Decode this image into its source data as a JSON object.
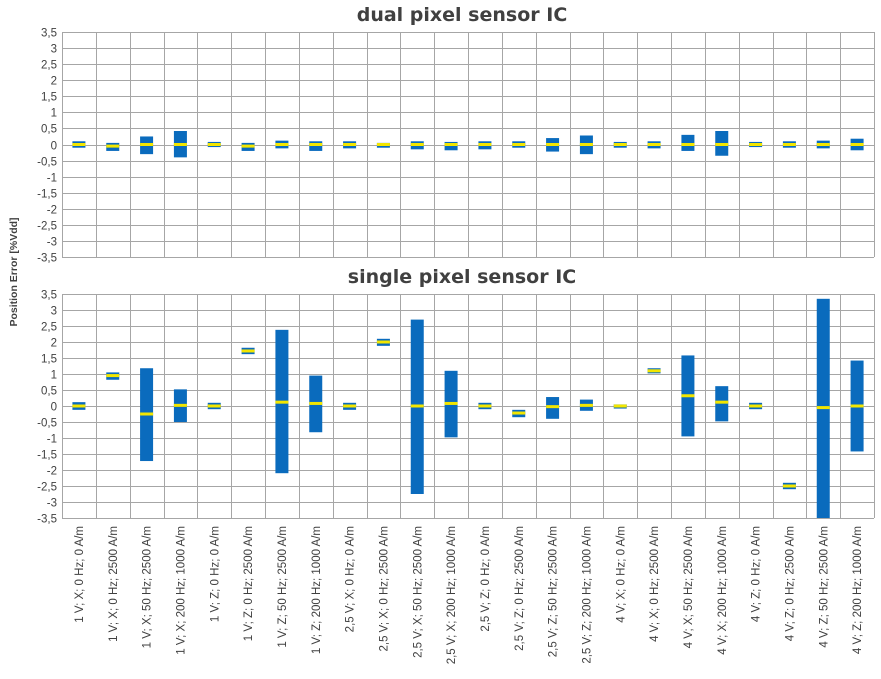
{
  "chart_data": {
    "type": "bar",
    "ylabel": "Position Error [%Vdd]",
    "ylim": [
      -3.5,
      3.5
    ],
    "yticks": [
      "3,5",
      "3",
      "2,5",
      "2",
      "1,5",
      "1",
      "0,5",
      "0",
      "-0,5",
      "-1",
      "-1,5",
      "-2",
      "-2,5",
      "-3",
      "-3,5"
    ],
    "grid": true,
    "categories": [
      "1 V; X; 0 Hz; 0 A/m",
      "1 V; X; 0 Hz; 2500 A/m",
      "1 V; X; 50 Hz; 2500 A/m",
      "1 V; X; 200 Hz; 1000 A/m",
      "1 V; Z; 0 Hz; 0 A/m",
      "1 V; Z; 0 Hz; 2500 A/m",
      "1 V; Z; 50 Hz; 2500 A/m",
      "1 V; Z; 200 Hz; 1000 A/m",
      "2,5 V; X; 0 Hz; 0 A/m",
      "2,5 V; X; 0 Hz; 2500 A/m",
      "2,5 V; X; 50 Hz; 2500 A/m",
      "2,5 V; X; 200 Hz; 1000 A/m",
      "2,5 V; Z; 0 Hz; 0 A/m",
      "2,5 V; Z; 0 Hz; 2500 A/m",
      "2,5 V; Z; 50 Hz; 2500 A/m",
      "2,5 V; Z; 200 Hz; 1000 A/m",
      "4 V; X; 0 Hz; 0 A/m",
      "4 V; X; 0 Hz; 2500 A/m",
      "4 V; X; 50 Hz; 2500 A/m",
      "4 V; X; 200 Hz; 1000 A/m",
      "4 V; Z; 0 Hz; 0 A/m",
      "4 V; Z; 0 Hz; 2500 A/m",
      "4 V; Z; 50 Hz; 2500 A/m",
      "4 V; Z; 200 Hz; 1000 A/m"
    ],
    "colors": {
      "range": "#0a6bbd",
      "mean": "#f2e600",
      "grid": "#a6a6a6",
      "axis": "#808080"
    },
    "panels": [
      {
        "title": "dual pixel sensor IC",
        "min": [
          -0.1,
          -0.2,
          -0.3,
          -0.4,
          -0.08,
          -0.2,
          -0.12,
          -0.2,
          -0.12,
          -0.1,
          -0.15,
          -0.18,
          -0.15,
          -0.1,
          -0.22,
          -0.3,
          -0.1,
          -0.12,
          -0.2,
          -0.35,
          -0.08,
          -0.1,
          -0.12,
          -0.18
        ],
        "max": [
          0.1,
          0.05,
          0.25,
          0.42,
          0.08,
          0.05,
          0.12,
          0.1,
          0.1,
          0.05,
          0.1,
          0.08,
          0.1,
          0.1,
          0.2,
          0.28,
          0.08,
          0.1,
          0.3,
          0.42,
          0.08,
          0.1,
          0.12,
          0.18
        ],
        "mean": [
          0,
          -0.05,
          0,
          0,
          0,
          -0.05,
          0,
          0,
          0,
          0,
          0,
          0,
          0,
          0,
          0,
          0,
          0,
          0,
          0,
          0,
          0,
          0,
          0,
          0
        ]
      },
      {
        "title": "single pixel sensor IC",
        "min": [
          -0.12,
          0.82,
          -1.72,
          -0.5,
          -0.1,
          1.62,
          -2.1,
          -0.82,
          -0.12,
          1.88,
          -2.75,
          -0.98,
          -0.1,
          -0.35,
          -0.4,
          -0.15,
          -0.08,
          1.02,
          -0.95,
          -0.48,
          -0.1,
          -2.6,
          -3.5,
          -1.42
        ],
        "max": [
          0.12,
          1.05,
          1.18,
          0.52,
          0.1,
          1.82,
          2.38,
          0.95,
          0.1,
          2.1,
          2.7,
          1.1,
          0.1,
          -0.12,
          0.28,
          0.2,
          0.05,
          1.18,
          1.58,
          0.62,
          0.1,
          -2.4,
          3.35,
          1.42
        ],
        "mean": [
          0,
          0.95,
          -0.25,
          0.02,
          0,
          1.72,
          0.12,
          0.08,
          0,
          2.0,
          0,
          0.08,
          0,
          -0.22,
          -0.02,
          0.02,
          0,
          1.1,
          0.32,
          0.12,
          0,
          -2.5,
          -0.05,
          0
        ]
      }
    ]
  }
}
